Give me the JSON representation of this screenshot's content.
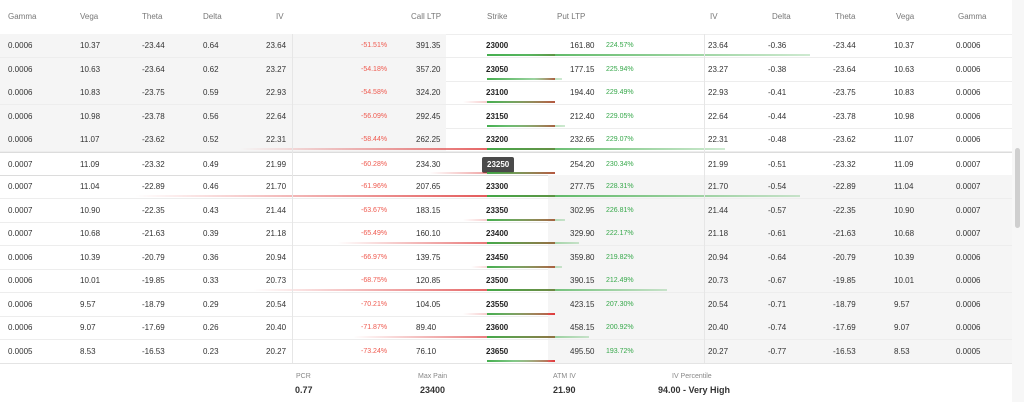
{
  "header": {
    "left": [
      "Gamma",
      "Vega",
      "Theta",
      "Delta",
      "IV"
    ],
    "call_ltp": "Call LTP",
    "strike": "Strike",
    "put_ltp": "Put LTP",
    "right": [
      "IV",
      "Delta",
      "Theta",
      "Vega",
      "Gamma"
    ]
  },
  "rows": [
    {
      "cg": "0.0006",
      "cv": "10.37",
      "ct": "-23.44",
      "cd": "0.64",
      "civ": "23.64",
      "cpct": "-51.51%",
      "cltp": "391.35",
      "strike": "23000",
      "pltp": "161.80",
      "ppct": "224.57%",
      "piv": "23.64",
      "pd": "-0.36",
      "pt": "-23.44",
      "pv": "10.37",
      "pg": "0.0006",
      "call_bar": 0.07,
      "put_bar": 0.95
    },
    {
      "cg": "0.0006",
      "cv": "10.63",
      "ct": "-23.64",
      "cd": "0.62",
      "civ": "23.27",
      "cpct": "-54.18%",
      "cltp": "357.20",
      "strike": "23050",
      "pltp": "177.15",
      "ppct": "225.94%",
      "piv": "23.27",
      "pd": "-0.38",
      "pt": "-23.64",
      "pv": "10.63",
      "pg": "0.0006",
      "call_bar": 0.05,
      "put_bar": 0.22
    },
    {
      "cg": "0.0006",
      "cv": "10.83",
      "ct": "-23.75",
      "cd": "0.59",
      "civ": "22.93",
      "cpct": "-54.58%",
      "cltp": "324.20",
      "strike": "23100",
      "pltp": "194.40",
      "ppct": "229.49%",
      "piv": "22.93",
      "pd": "-0.41",
      "pt": "-23.75",
      "pv": "10.83",
      "pg": "0.0006",
      "call_bar": 0.22,
      "put_bar": 0.2
    },
    {
      "cg": "0.0006",
      "cv": "10.98",
      "ct": "-23.78",
      "cd": "0.56",
      "civ": "22.64",
      "cpct": "-56.09%",
      "cltp": "292.45",
      "strike": "23150",
      "pltp": "212.40",
      "ppct": "229.05%",
      "piv": "22.64",
      "pd": "-0.44",
      "pt": "-23.78",
      "pv": "10.98",
      "pg": "0.0006",
      "call_bar": 0.12,
      "put_bar": 0.23
    },
    {
      "cg": "0.0006",
      "cv": "11.07",
      "ct": "-23.62",
      "cd": "0.52",
      "civ": "22.31",
      "cpct": "-58.44%",
      "cltp": "262.25",
      "strike": "23200",
      "pltp": "232.65",
      "ppct": "229.07%",
      "piv": "22.31",
      "pd": "-0.48",
      "pt": "-23.62",
      "pv": "11.07",
      "pg": "0.0006",
      "call_bar": 0.75,
      "put_bar": 0.7
    },
    {
      "cg": "0.0007",
      "cv": "11.09",
      "ct": "-23.32",
      "cd": "0.49",
      "civ": "21.99",
      "cpct": "-60.28%",
      "cltp": "234.30",
      "strike": "23250",
      "pltp": "254.20",
      "ppct": "230.34%",
      "piv": "21.99",
      "pd": "-0.51",
      "pt": "-23.32",
      "pv": "11.09",
      "pg": "0.0007",
      "call_bar": 0.3,
      "put_bar": 0.2,
      "atm": true
    },
    {
      "cg": "0.0007",
      "cv": "11.04",
      "ct": "-22.89",
      "cd": "0.46",
      "civ": "21.70",
      "cpct": "-61.96%",
      "cltp": "207.65",
      "strike": "23300",
      "pltp": "277.75",
      "ppct": "228.31%",
      "piv": "21.70",
      "pd": "-0.54",
      "pt": "-22.89",
      "pv": "11.04",
      "pg": "0.0007",
      "call_bar": 1.0,
      "put_bar": 0.92
    },
    {
      "cg": "0.0007",
      "cv": "10.90",
      "ct": "-22.35",
      "cd": "0.43",
      "civ": "21.44",
      "cpct": "-63.67%",
      "cltp": "183.15",
      "strike": "23350",
      "pltp": "302.95",
      "ppct": "226.81%",
      "piv": "21.44",
      "pd": "-0.57",
      "pt": "-22.35",
      "pv": "10.90",
      "pg": "0.0007",
      "call_bar": 0.22,
      "put_bar": 0.23
    },
    {
      "cg": "0.0007",
      "cv": "10.68",
      "ct": "-21.63",
      "cd": "0.39",
      "civ": "21.18",
      "cpct": "-65.49%",
      "cltp": "160.10",
      "strike": "23400",
      "pltp": "329.90",
      "ppct": "222.17%",
      "piv": "21.18",
      "pd": "-0.61",
      "pt": "-21.63",
      "pv": "10.68",
      "pg": "0.0007",
      "call_bar": 0.52,
      "put_bar": 0.27
    },
    {
      "cg": "0.0006",
      "cv": "10.39",
      "ct": "-20.79",
      "cd": "0.36",
      "civ": "20.94",
      "cpct": "-66.97%",
      "cltp": "139.75",
      "strike": "23450",
      "pltp": "359.80",
      "ppct": "219.82%",
      "piv": "20.94",
      "pd": "-0.64",
      "pt": "-20.79",
      "pv": "10.39",
      "pg": "0.0006",
      "call_bar": 0.2,
      "put_bar": 0.22
    },
    {
      "cg": "0.0006",
      "cv": "10.01",
      "ct": "-19.85",
      "cd": "0.33",
      "civ": "20.73",
      "cpct": "-68.75%",
      "cltp": "120.85",
      "strike": "23500",
      "pltp": "390.15",
      "ppct": "212.49%",
      "piv": "20.73",
      "pd": "-0.67",
      "pt": "-19.85",
      "pv": "10.01",
      "pg": "0.0006",
      "call_bar": 0.72,
      "put_bar": 0.53
    },
    {
      "cg": "0.0006",
      "cv": "9.57",
      "ct": "-18.79",
      "cd": "0.29",
      "civ": "20.54",
      "cpct": "-70.21%",
      "cltp": "104.05",
      "strike": "23550",
      "pltp": "423.15",
      "ppct": "207.30%",
      "piv": "20.54",
      "pd": "-0.71",
      "pt": "-18.79",
      "pv": "9.57",
      "pg": "0.0006",
      "call_bar": 0.22,
      "put_bar": 0.18
    },
    {
      "cg": "0.0006",
      "cv": "9.07",
      "ct": "-17.69",
      "cd": "0.26",
      "civ": "20.40",
      "cpct": "-71.87%",
      "cltp": "89.40",
      "strike": "23600",
      "pltp": "458.15",
      "ppct": "200.92%",
      "piv": "20.40",
      "pd": "-0.74",
      "pt": "-17.69",
      "pv": "9.07",
      "pg": "0.0006",
      "call_bar": 0.48,
      "put_bar": 0.3
    },
    {
      "cg": "0.0005",
      "cv": "8.53",
      "ct": "-16.53",
      "cd": "0.23",
      "civ": "20.27",
      "cpct": "-73.24%",
      "cltp": "76.10",
      "strike": "23650",
      "pltp": "495.50",
      "ppct": "193.72%",
      "piv": "20.27",
      "pd": "-0.77",
      "pt": "-16.53",
      "pv": "8.53",
      "pg": "0.0005",
      "call_bar": 0.1,
      "put_bar": 0.18
    }
  ],
  "footer": {
    "pcr_label": "PCR",
    "pcr_value": "0.77",
    "maxpain_label": "Max Pain",
    "maxpain_value": "23400",
    "atmiv_label": "ATM IV",
    "atmiv_value": "21.90",
    "ivp_label": "IV Percentile",
    "ivp_value": "94.00 - Very High"
  },
  "colors": {
    "negative": "#ef5a4f",
    "positive": "#36a84a",
    "atm_badge": "#4a4a4a"
  }
}
